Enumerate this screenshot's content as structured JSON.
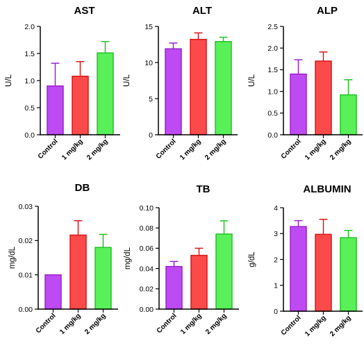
{
  "chart_data": [
    {
      "type": "bar",
      "title": "AST",
      "ylabel": "U/L",
      "categories": [
        "Control",
        "1 mg/kg",
        "2 mg/kg"
      ],
      "values": [
        0.9,
        1.08,
        1.51
      ],
      "errors": [
        0.42,
        0.27,
        0.21
      ],
      "ylim": [
        0,
        2.0
      ],
      "yticks": [
        0,
        0.5,
        1.0,
        1.5,
        2.0
      ],
      "ytick_labels": [
        "0.0",
        "0.5",
        "1.0",
        "1.5",
        "2.0"
      ]
    },
    {
      "type": "bar",
      "title": "ALT",
      "ylabel": "U/L",
      "categories": [
        "Control",
        "1 mg/kg",
        "2 mg/kg"
      ],
      "values": [
        11.9,
        13.2,
        12.9
      ],
      "errors": [
        0.8,
        0.9,
        0.6
      ],
      "ylim": [
        0,
        15
      ],
      "yticks": [
        0,
        5,
        10,
        15
      ],
      "ytick_labels": [
        "0",
        "5",
        "10",
        "15"
      ]
    },
    {
      "type": "bar",
      "title": "ALP",
      "ylabel": "U/L",
      "categories": [
        "Control",
        "1 mg/kg",
        "2 mg/kg"
      ],
      "values": [
        1.4,
        1.7,
        0.92
      ],
      "errors": [
        0.33,
        0.21,
        0.35
      ],
      "ylim": [
        0,
        2.5
      ],
      "yticks": [
        0,
        0.5,
        1.0,
        1.5,
        2.0,
        2.5
      ],
      "ytick_labels": [
        "0.0",
        "0.5",
        "1.0",
        "1.5",
        "2.0",
        "2.5"
      ]
    },
    {
      "type": "bar",
      "title": "DB",
      "ylabel": "mg/dL",
      "categories": [
        "Control",
        "1 mg/kg",
        "2 mg/kg"
      ],
      "values": [
        0.01,
        0.0216,
        0.018
      ],
      "errors": [
        0,
        0.0042,
        0.0038
      ],
      "ylim": [
        0,
        0.03
      ],
      "yticks": [
        0,
        0.01,
        0.02,
        0.03
      ],
      "ytick_labels": [
        "0.00",
        "0.01",
        "0.02",
        "0.03"
      ]
    },
    {
      "type": "bar",
      "title": "TB",
      "ylabel": "mg/dL",
      "categories": [
        "Control",
        "1 mg/kg",
        "2 mg/kg"
      ],
      "values": [
        0.042,
        0.053,
        0.074
      ],
      "errors": [
        0.005,
        0.007,
        0.013
      ],
      "ylim": [
        0,
        0.1
      ],
      "yticks": [
        0,
        0.02,
        0.04,
        0.06,
        0.08,
        0.1
      ],
      "ytick_labels": [
        "0.00",
        "0.02",
        "0.04",
        "0.06",
        "0.08",
        "0.10"
      ]
    },
    {
      "type": "bar",
      "title": "ALBUMIN",
      "ylabel": "g/dL",
      "categories": [
        "Control",
        "1 mg/kg",
        "2 mg/kg"
      ],
      "values": [
        3.27,
        2.97,
        2.84
      ],
      "errors": [
        0.23,
        0.58,
        0.28
      ],
      "ylim": [
        0,
        4
      ],
      "yticks": [
        0,
        1,
        2,
        3,
        4
      ],
      "ytick_labels": [
        "0",
        "1",
        "2",
        "3",
        "4"
      ]
    }
  ],
  "colors": {
    "bar_fills": [
      "#bd4af2",
      "#fb4a4a",
      "#59f05a"
    ],
    "bar_strokes": [
      "#9a22cc",
      "#d81818",
      "#22c226"
    ],
    "axis": "#000000"
  }
}
